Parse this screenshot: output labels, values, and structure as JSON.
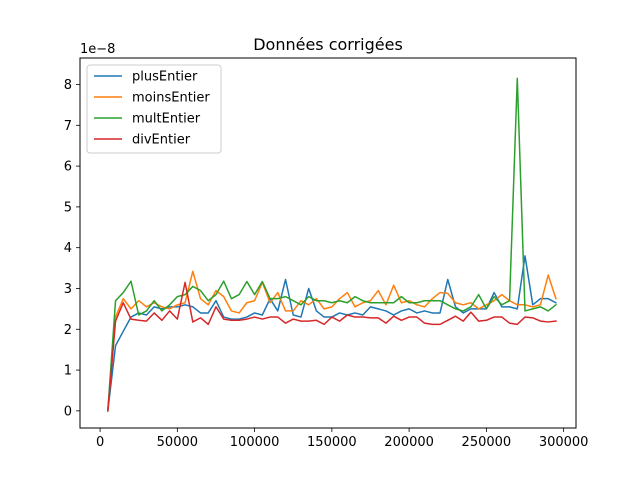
{
  "chart_data": {
    "type": "line",
    "title": "Données corrigées",
    "xlabel": "",
    "ylabel": "",
    "y_scale_note": "1e−8",
    "xlim": [
      -13000,
      308000
    ],
    "ylim": [
      -0.42,
      8.65
    ],
    "x_ticks": [
      0,
      50000,
      100000,
      150000,
      200000,
      250000,
      300000
    ],
    "x_tick_labels": [
      "0",
      "50000",
      "100000",
      "150000",
      "200000",
      "250000",
      "300000"
    ],
    "y_ticks": [
      0,
      1,
      2,
      3,
      4,
      5,
      6,
      7,
      8
    ],
    "y_tick_labels": [
      "0",
      "1",
      "2",
      "3",
      "4",
      "5",
      "6",
      "7",
      "8"
    ],
    "grid": false,
    "legend_position": "upper-left",
    "x": [
      5000,
      10000,
      15000,
      20000,
      25000,
      30000,
      35000,
      40000,
      45000,
      50000,
      55000,
      60000,
      65000,
      70000,
      75000,
      80000,
      85000,
      90000,
      95000,
      100000,
      105000,
      110000,
      115000,
      120000,
      125000,
      130000,
      135000,
      140000,
      145000,
      150000,
      155000,
      160000,
      165000,
      170000,
      175000,
      180000,
      185000,
      190000,
      195000,
      200000,
      205000,
      210000,
      215000,
      220000,
      225000,
      230000,
      235000,
      240000,
      245000,
      250000,
      255000,
      260000,
      265000,
      270000,
      275000,
      280000,
      285000,
      290000,
      295000
    ],
    "series": [
      {
        "name": "plusEntier",
        "color": "#1f77b4",
        "values": [
          0.0,
          1.6,
          1.95,
          2.3,
          2.4,
          2.35,
          2.55,
          2.5,
          2.55,
          2.55,
          2.6,
          2.55,
          2.4,
          2.4,
          2.7,
          2.3,
          2.25,
          2.25,
          2.3,
          2.4,
          2.35,
          2.75,
          2.45,
          3.22,
          2.35,
          2.3,
          3.0,
          2.45,
          2.3,
          2.3,
          2.4,
          2.35,
          2.4,
          2.35,
          2.55,
          2.5,
          2.45,
          2.35,
          2.45,
          2.5,
          2.4,
          2.45,
          2.4,
          2.4,
          3.22,
          2.55,
          2.4,
          2.5,
          2.5,
          2.5,
          2.9,
          2.55,
          2.55,
          2.5,
          3.8,
          2.6,
          2.75,
          2.75,
          2.65
        ]
      },
      {
        "name": "moinsEntier",
        "color": "#ff7f0e",
        "values": [
          0.0,
          2.3,
          2.75,
          2.5,
          2.7,
          2.55,
          2.65,
          2.55,
          2.5,
          2.6,
          2.65,
          3.42,
          2.75,
          2.6,
          2.95,
          2.8,
          2.45,
          2.4,
          2.65,
          2.7,
          3.15,
          2.65,
          2.9,
          2.45,
          2.45,
          2.7,
          2.6,
          2.75,
          2.5,
          2.55,
          2.75,
          2.9,
          2.55,
          2.65,
          2.7,
          2.95,
          2.6,
          3.08,
          2.65,
          2.7,
          2.6,
          2.55,
          2.75,
          2.9,
          2.88,
          2.65,
          2.6,
          2.65,
          2.5,
          2.6,
          2.7,
          2.85,
          2.7,
          2.6,
          2.6,
          2.55,
          2.6,
          3.33,
          2.75
        ]
      },
      {
        "name": "multEntier",
        "color": "#2ca02c",
        "values": [
          0.0,
          2.7,
          2.9,
          3.18,
          2.35,
          2.45,
          2.7,
          2.45,
          2.6,
          2.8,
          2.85,
          3.05,
          2.95,
          2.7,
          2.85,
          3.18,
          2.75,
          2.85,
          3.17,
          2.85,
          3.17,
          2.75,
          2.75,
          2.8,
          2.7,
          2.6,
          2.8,
          2.7,
          2.7,
          2.65,
          2.7,
          2.65,
          2.8,
          2.7,
          2.65,
          2.65,
          2.65,
          2.65,
          2.8,
          2.65,
          2.65,
          2.7,
          2.7,
          2.7,
          2.6,
          2.5,
          2.45,
          2.55,
          2.85,
          2.5,
          2.8,
          2.6,
          2.7,
          8.15,
          2.45,
          2.5,
          2.55,
          2.45,
          2.6
        ]
      },
      {
        "name": "divEntier",
        "color": "#d62728",
        "values": [
          0.0,
          2.2,
          2.65,
          2.25,
          2.22,
          2.2,
          2.4,
          2.22,
          2.45,
          2.25,
          3.15,
          2.18,
          2.28,
          2.12,
          2.55,
          2.25,
          2.22,
          2.22,
          2.25,
          2.3,
          2.25,
          2.3,
          2.3,
          2.15,
          2.25,
          2.2,
          2.2,
          2.22,
          2.12,
          2.3,
          2.2,
          2.35,
          2.3,
          2.3,
          2.28,
          2.28,
          2.15,
          2.32,
          2.22,
          2.3,
          2.3,
          2.15,
          2.12,
          2.12,
          2.22,
          2.32,
          2.2,
          2.42,
          2.2,
          2.22,
          2.3,
          2.3,
          2.15,
          2.12,
          2.3,
          2.28,
          2.2,
          2.18,
          2.2
        ]
      }
    ]
  }
}
